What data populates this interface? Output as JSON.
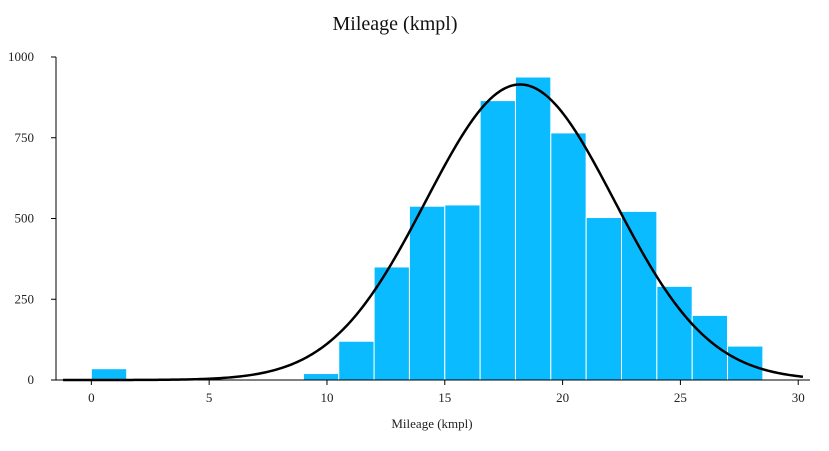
{
  "chart_data": {
    "type": "bar",
    "title": "Mileage (kmpl)",
    "xlabel": "Mileage (kmpl)",
    "ylabel": "",
    "xlim": [
      -1.5,
      30.5
    ],
    "ylim": [
      0,
      1000
    ],
    "xticks": [
      0,
      5,
      10,
      15,
      20,
      25,
      30
    ],
    "yticks": [
      0,
      250,
      500,
      750,
      1000
    ],
    "bin_width": 1.5,
    "bins": [
      {
        "start": 0.0,
        "end": 1.5,
        "count": 35
      },
      {
        "start": 1.5,
        "end": 3.0,
        "count": 0
      },
      {
        "start": 3.0,
        "end": 4.5,
        "count": 0
      },
      {
        "start": 4.5,
        "end": 6.0,
        "count": 0
      },
      {
        "start": 6.0,
        "end": 7.5,
        "count": 0
      },
      {
        "start": 7.5,
        "end": 9.0,
        "count": 0
      },
      {
        "start": 9.0,
        "end": 10.5,
        "count": 20
      },
      {
        "start": 10.5,
        "end": 12.0,
        "count": 120
      },
      {
        "start": 12.0,
        "end": 13.5,
        "count": 350
      },
      {
        "start": 13.5,
        "end": 15.0,
        "count": 538
      },
      {
        "start": 15.0,
        "end": 16.5,
        "count": 542
      },
      {
        "start": 16.5,
        "end": 18.0,
        "count": 865
      },
      {
        "start": 18.0,
        "end": 19.5,
        "count": 938
      },
      {
        "start": 19.5,
        "end": 21.0,
        "count": 765
      },
      {
        "start": 21.0,
        "end": 22.5,
        "count": 503
      },
      {
        "start": 22.5,
        "end": 24.0,
        "count": 522
      },
      {
        "start": 24.0,
        "end": 25.5,
        "count": 290
      },
      {
        "start": 25.5,
        "end": 27.0,
        "count": 200
      },
      {
        "start": 27.0,
        "end": 28.5,
        "count": 105
      }
    ],
    "fit_curve": {
      "type": "normal",
      "mean": 18.2,
      "std": 4.0,
      "peak": 915
    },
    "bar_color": "#0abcff",
    "curve_color": "#000000",
    "grid": false,
    "legend": "none"
  }
}
